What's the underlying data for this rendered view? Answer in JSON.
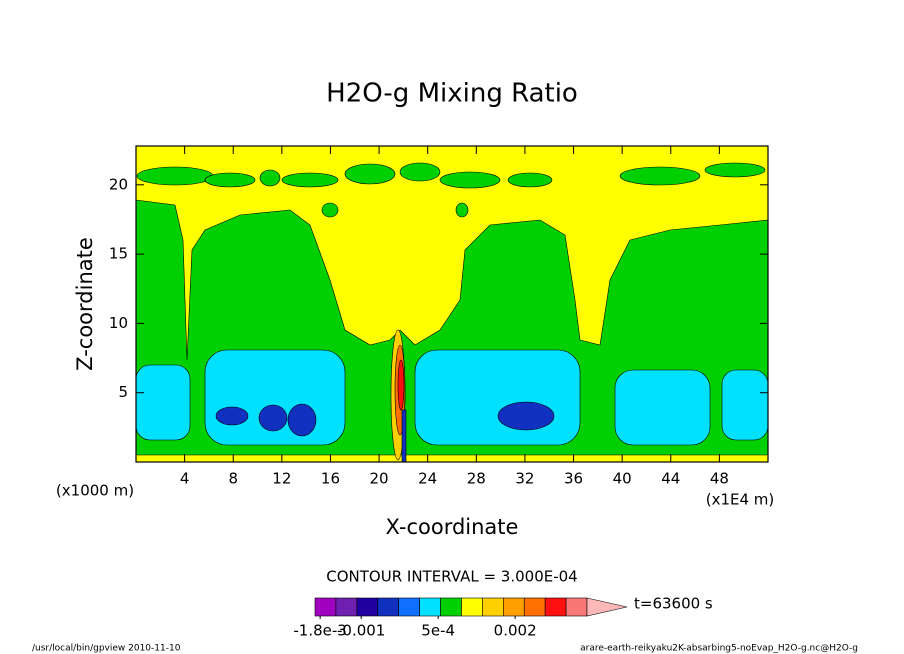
{
  "chart_data": {
    "type": "contour",
    "title": "H2O-g Mixing Ratio",
    "x_label": "X-coordinate",
    "y_label": "Z-coordinate",
    "x_unit": "(x1E4 m)",
    "y_unit": "(x1000 m)",
    "xlim": [
      0,
      52
    ],
    "ylim": [
      0,
      22.8
    ],
    "xticks": [
      4,
      8,
      12,
      16,
      20,
      24,
      28,
      32,
      36,
      40,
      44,
      48
    ],
    "yticks": [
      5,
      10,
      15,
      20
    ],
    "contour_interval": "CONTOUR INTERVAL = 3.000E-04",
    "time": "t=63600 s",
    "colorbar": {
      "colors": [
        "#a000c0",
        "#7020b0",
        "#2000a0",
        "#1030c0",
        "#1070ff",
        "#00e0ff",
        "#00d000",
        "#ffff00",
        "#ffd000",
        "#ffa000",
        "#ff7000",
        "#ff1010",
        "#f87878"
      ],
      "extend_color": "#ffb8b8",
      "lim": [
        -0.0019,
        0.0034
      ],
      "ticks": [
        {
          "value": -0.0018,
          "label": "-1.8e-3"
        },
        {
          "value": -0.001,
          "label": "-0.001"
        },
        {
          "value": 0.0005,
          "label": "5e-4"
        },
        {
          "value": 0.002,
          "label": "0.002"
        }
      ]
    },
    "footer_left": "/usr/local/bin/gpview  2010-11-10",
    "footer_right": "arare-earth-reikyaku2K-absarbing5-noEvap_H2O-g.nc@H2O-g"
  }
}
